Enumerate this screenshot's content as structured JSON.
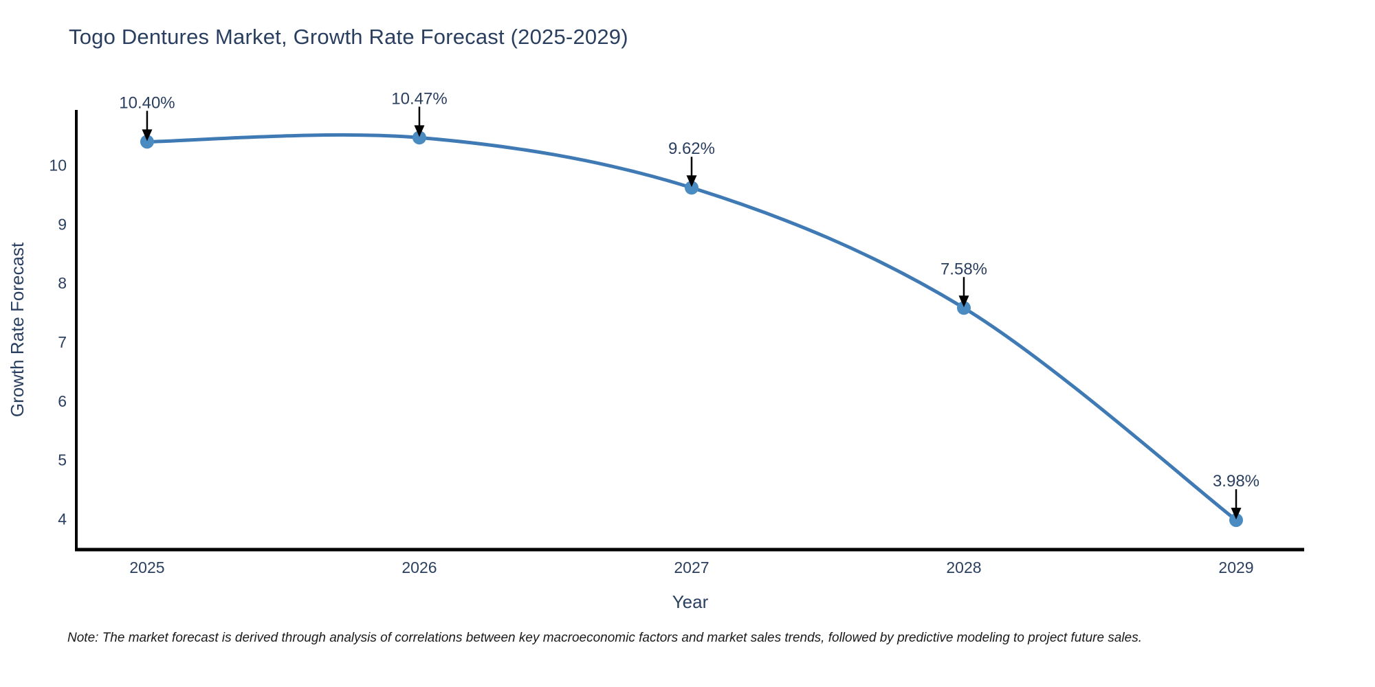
{
  "chart_data": {
    "type": "line",
    "title": "Togo Dentures Market, Growth Rate Forecast (2025-2029)",
    "xlabel": "Year",
    "ylabel": "Growth Rate Forecast",
    "x": [
      2025,
      2026,
      2027,
      2028,
      2029
    ],
    "values": [
      10.4,
      10.47,
      9.62,
      7.58,
      3.98
    ],
    "point_labels": [
      "10.40%",
      "10.47%",
      "9.62%",
      "7.58%",
      "3.98%"
    ],
    "yticks": [
      4,
      5,
      6,
      7,
      8,
      9,
      10
    ],
    "xlim": [
      2024.74,
      2029.25
    ],
    "ylim": [
      3.48,
      10.94
    ],
    "grid": false,
    "legend": false,
    "line_shape": "spline",
    "line_color": "#3f7ab5",
    "marker_color": "#4a8bc2",
    "axis_color": "#000000",
    "text_color": "#2a3f5f",
    "annotation_arrow_color": "#000000",
    "note": "Note: The market forecast is derived through analysis of correlations between key macroeconomic factors and market sales trends, followed by predictive modeling to project future sales."
  }
}
